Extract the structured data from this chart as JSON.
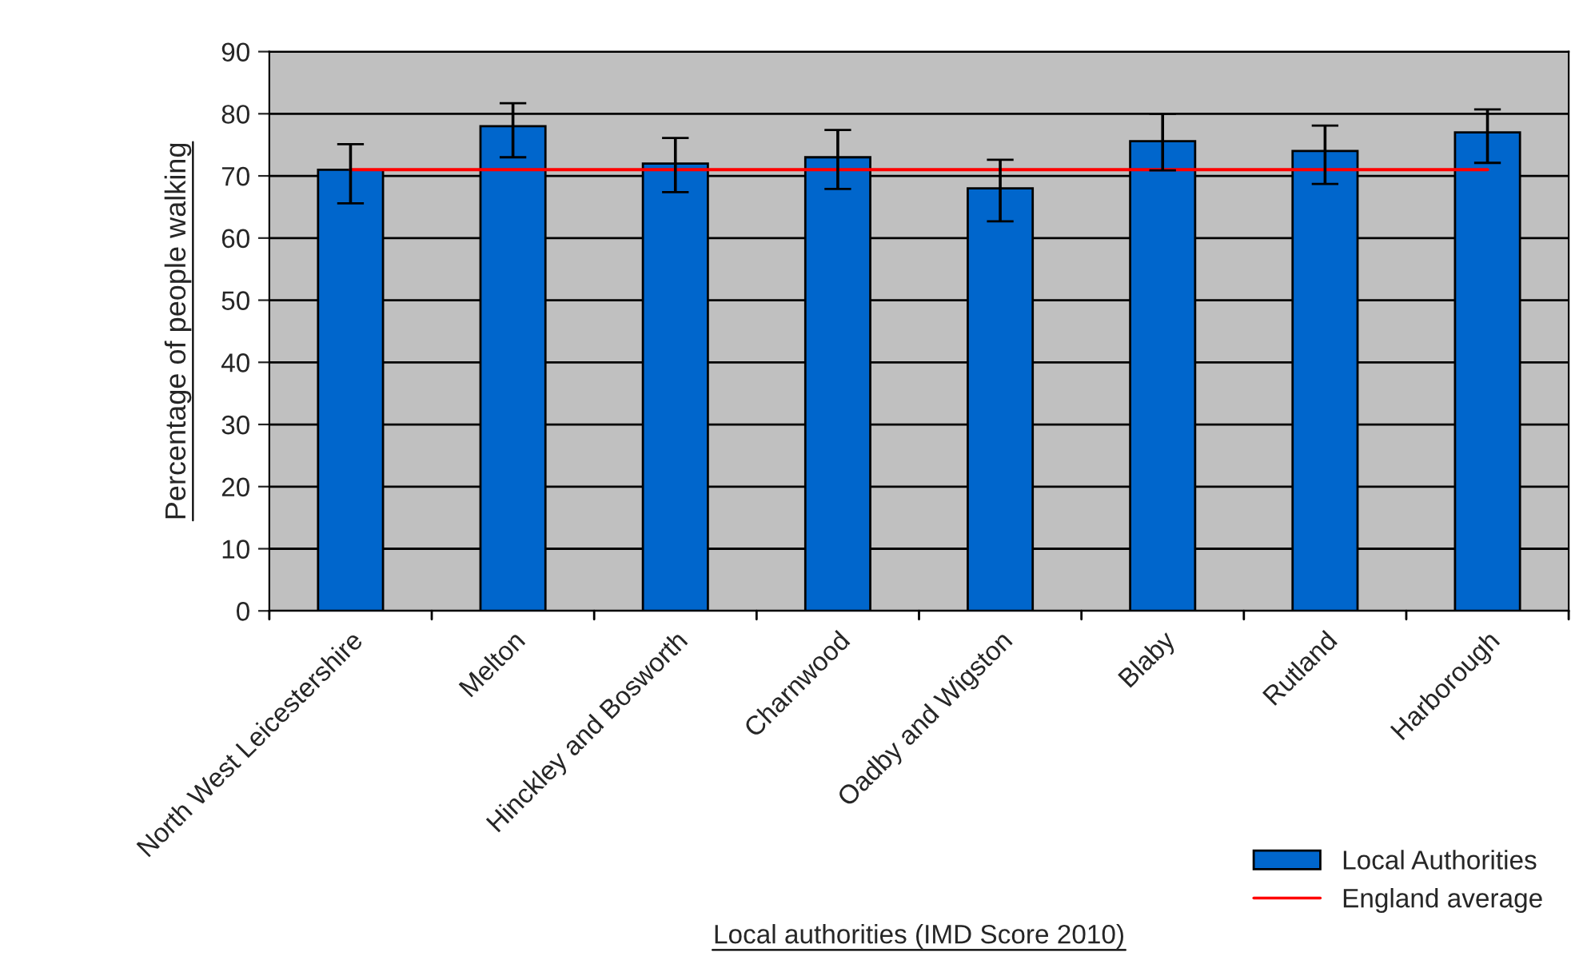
{
  "chart_data": {
    "type": "bar",
    "xlabel": "Local authorities (IMD Score 2010)",
    "ylabel": "Percentage of people walking",
    "categories": [
      "North West Leicestershire",
      "Melton",
      "Hinckley and Bosworth",
      "Charnwood",
      "Oadby and Wigston",
      "Blaby",
      "Rutland",
      "Harborough"
    ],
    "series": [
      {
        "name": "Local Authorities",
        "color": "#0066cc",
        "values": [
          71,
          78,
          72,
          73,
          68,
          75.6,
          74,
          77
        ],
        "errors": [
          [
            65.6,
            75.1
          ],
          [
            73,
            81.7
          ],
          [
            67.4,
            76.1
          ],
          [
            67.9,
            77.4
          ],
          [
            62.7,
            72.6
          ],
          [
            70.9,
            80
          ],
          [
            68.7,
            78.1
          ],
          [
            72.1,
            80.7
          ]
        ]
      },
      {
        "name": "England average",
        "type": "line",
        "color": "#ff0000",
        "values": [
          71,
          71,
          71,
          71,
          71,
          71,
          71,
          71
        ]
      }
    ],
    "ylim": [
      0,
      90
    ],
    "yticks": [
      0,
      10,
      20,
      30,
      40,
      50,
      60,
      70,
      80,
      90
    ],
    "grid": "y",
    "legend": "bottom right"
  }
}
